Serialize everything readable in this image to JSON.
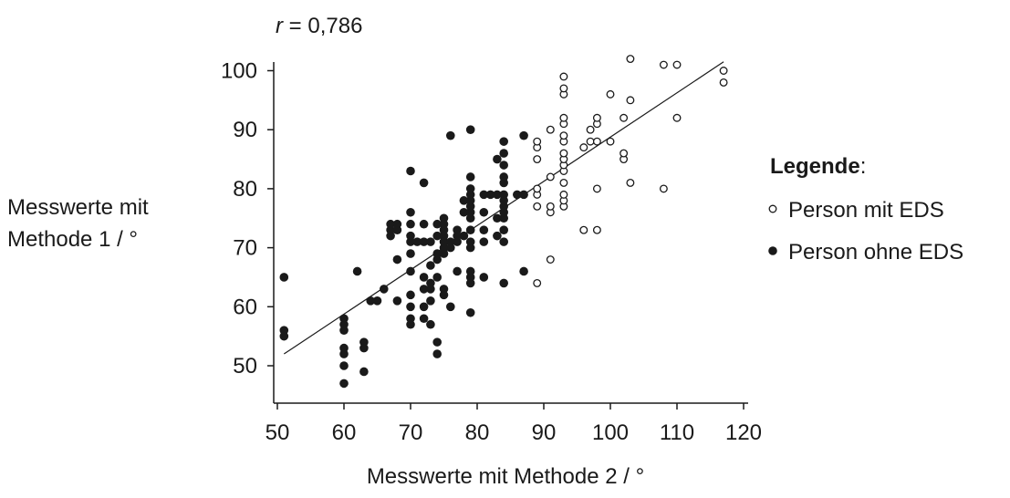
{
  "chart_data": {
    "type": "scatter",
    "annotation": {
      "var": "r",
      "rest": " = 0,786"
    },
    "xlabel": "Messwerte mit Methode 2 / °",
    "ylabel_lines": [
      "Messwerte mit",
      "Methode 1 / °"
    ],
    "xlim": [
      50,
      120
    ],
    "ylim": [
      44,
      103
    ],
    "xticks": [
      50,
      60,
      70,
      80,
      90,
      100,
      110,
      120
    ],
    "yticks": [
      50,
      60,
      70,
      80,
      90,
      100
    ],
    "legend": {
      "title": "Legende",
      "title_suffix": ":",
      "placement": "right"
    },
    "regression_line": {
      "x": [
        51,
        117
      ],
      "y": [
        52,
        101.5
      ]
    },
    "series": [
      {
        "name": "Person mit EDS",
        "marker": "open-circle",
        "color": "#1a1a1a",
        "points": [
          [
            89,
            64
          ],
          [
            89,
            77
          ],
          [
            89,
            79
          ],
          [
            89,
            80
          ],
          [
            89,
            85
          ],
          [
            89,
            87
          ],
          [
            89,
            88
          ],
          [
            91,
            68
          ],
          [
            91,
            76
          ],
          [
            91,
            77
          ],
          [
            91,
            82
          ],
          [
            91,
            90
          ],
          [
            93,
            77
          ],
          [
            93,
            78
          ],
          [
            93,
            79
          ],
          [
            93,
            81
          ],
          [
            93,
            83
          ],
          [
            93,
            84
          ],
          [
            93,
            85
          ],
          [
            93,
            86
          ],
          [
            93,
            88
          ],
          [
            93,
            89
          ],
          [
            93,
            91
          ],
          [
            93,
            92
          ],
          [
            93,
            96
          ],
          [
            93,
            97
          ],
          [
            93,
            99
          ],
          [
            96,
            73
          ],
          [
            96,
            87
          ],
          [
            97,
            88
          ],
          [
            97,
            90
          ],
          [
            98,
            73
          ],
          [
            98,
            80
          ],
          [
            98,
            88
          ],
          [
            98,
            91
          ],
          [
            98,
            92
          ],
          [
            100,
            88
          ],
          [
            100,
            96
          ],
          [
            102,
            85
          ],
          [
            102,
            86
          ],
          [
            102,
            92
          ],
          [
            103,
            81
          ],
          [
            103,
            95
          ],
          [
            103,
            102
          ],
          [
            108,
            80
          ],
          [
            108,
            101
          ],
          [
            110,
            92
          ],
          [
            110,
            101
          ],
          [
            117,
            98
          ],
          [
            117,
            100
          ]
        ]
      },
      {
        "name": "Person ohne EDS",
        "marker": "filled-circle",
        "color": "#1a1a1a",
        "points": [
          [
            51,
            65
          ],
          [
            51,
            55
          ],
          [
            51,
            56
          ],
          [
            60,
            47
          ],
          [
            60,
            50
          ],
          [
            60,
            52
          ],
          [
            60,
            53
          ],
          [
            60,
            56
          ],
          [
            60,
            57
          ],
          [
            60,
            58
          ],
          [
            62,
            66
          ],
          [
            63,
            49
          ],
          [
            63,
            53
          ],
          [
            63,
            54
          ],
          [
            64,
            61
          ],
          [
            65,
            61
          ],
          [
            66,
            63
          ],
          [
            67,
            72
          ],
          [
            67,
            73
          ],
          [
            67,
            74
          ],
          [
            68,
            61
          ],
          [
            68,
            68
          ],
          [
            68,
            73
          ],
          [
            68,
            74
          ],
          [
            70,
            57
          ],
          [
            70,
            58
          ],
          [
            70,
            60
          ],
          [
            70,
            62
          ],
          [
            70,
            66
          ],
          [
            70,
            69
          ],
          [
            70,
            71
          ],
          [
            70,
            72
          ],
          [
            70,
            74
          ],
          [
            70,
            76
          ],
          [
            70,
            83
          ],
          [
            71,
            71
          ],
          [
            72,
            58
          ],
          [
            72,
            60
          ],
          [
            72,
            63
          ],
          [
            72,
            65
          ],
          [
            72,
            71
          ],
          [
            72,
            74
          ],
          [
            72,
            81
          ],
          [
            73,
            57
          ],
          [
            73,
            61
          ],
          [
            73,
            63
          ],
          [
            73,
            64
          ],
          [
            73,
            67
          ],
          [
            73,
            71
          ],
          [
            74,
            52
          ],
          [
            74,
            54
          ],
          [
            74,
            65
          ],
          [
            74,
            68
          ],
          [
            74,
            69
          ],
          [
            74,
            72
          ],
          [
            74,
            74
          ],
          [
            75,
            62
          ],
          [
            75,
            63
          ],
          [
            75,
            69
          ],
          [
            75,
            70
          ],
          [
            75,
            71
          ],
          [
            75,
            72
          ],
          [
            75,
            73
          ],
          [
            75,
            74
          ],
          [
            75,
            75
          ],
          [
            76,
            60
          ],
          [
            76,
            70
          ],
          [
            76,
            71
          ],
          [
            76,
            89
          ],
          [
            77,
            66
          ],
          [
            77,
            71
          ],
          [
            77,
            72
          ],
          [
            77,
            73
          ],
          [
            78,
            72
          ],
          [
            78,
            76
          ],
          [
            78,
            78
          ],
          [
            79,
            59
          ],
          [
            79,
            64
          ],
          [
            79,
            65
          ],
          [
            79,
            66
          ],
          [
            79,
            70
          ],
          [
            79,
            71
          ],
          [
            79,
            73
          ],
          [
            79,
            75
          ],
          [
            79,
            76
          ],
          [
            79,
            77
          ],
          [
            79,
            78
          ],
          [
            79,
            79
          ],
          [
            79,
            80
          ],
          [
            79,
            82
          ],
          [
            79,
            90
          ],
          [
            81,
            65
          ],
          [
            81,
            71
          ],
          [
            81,
            73
          ],
          [
            81,
            76
          ],
          [
            81,
            79
          ],
          [
            82,
            79
          ],
          [
            83,
            72
          ],
          [
            83,
            75
          ],
          [
            83,
            79
          ],
          [
            83,
            85
          ],
          [
            84,
            64
          ],
          [
            84,
            71
          ],
          [
            84,
            73
          ],
          [
            84,
            75
          ],
          [
            84,
            76
          ],
          [
            84,
            77
          ],
          [
            84,
            78
          ],
          [
            84,
            79
          ],
          [
            84,
            81
          ],
          [
            84,
            82
          ],
          [
            84,
            84
          ],
          [
            84,
            86
          ],
          [
            84,
            88
          ],
          [
            86,
            79
          ],
          [
            87,
            66
          ],
          [
            87,
            79
          ],
          [
            87,
            89
          ]
        ]
      }
    ]
  }
}
